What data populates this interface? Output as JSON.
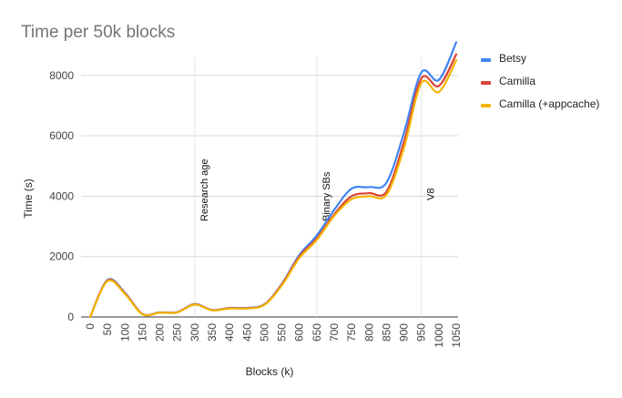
{
  "chart_data": {
    "type": "line",
    "title": "Time per 50k blocks",
    "xlabel": "Blocks (k)",
    "ylabel": "Time (s)",
    "x": [
      0,
      50,
      100,
      150,
      200,
      250,
      300,
      350,
      400,
      450,
      500,
      550,
      600,
      650,
      700,
      750,
      800,
      850,
      900,
      950,
      1000,
      1050
    ],
    "ylim": [
      0,
      9200
    ],
    "yticks": [
      0,
      2000,
      4000,
      6000,
      8000
    ],
    "grid": true,
    "legend_position": "right",
    "series": [
      {
        "name": "Betsy",
        "color": "#4285f4",
        "values": [
          0,
          1230,
          800,
          100,
          150,
          160,
          430,
          230,
          300,
          300,
          420,
          1100,
          2050,
          2700,
          3550,
          4250,
          4300,
          4450,
          6100,
          8100,
          7850,
          9100
        ]
      },
      {
        "name": "Camilla",
        "color": "#db4437",
        "values": [
          0,
          1210,
          780,
          95,
          145,
          155,
          420,
          225,
          290,
          290,
          410,
          1080,
          2000,
          2600,
          3400,
          4000,
          4100,
          4150,
          5800,
          7900,
          7650,
          8700
        ]
      },
      {
        "name": "Camilla (+appcache)",
        "color": "#f4b400",
        "values": [
          0,
          1190,
          760,
          90,
          140,
          150,
          410,
          220,
          280,
          280,
          400,
          1050,
          1950,
          2550,
          3350,
          3900,
          4000,
          4050,
          5600,
          7750,
          7450,
          8500
        ]
      }
    ],
    "annotations": [
      {
        "x": 300,
        "label": "Research age"
      },
      {
        "x": 650,
        "label": "Binary SBs"
      },
      {
        "x": 950,
        "label": "V8"
      }
    ]
  }
}
